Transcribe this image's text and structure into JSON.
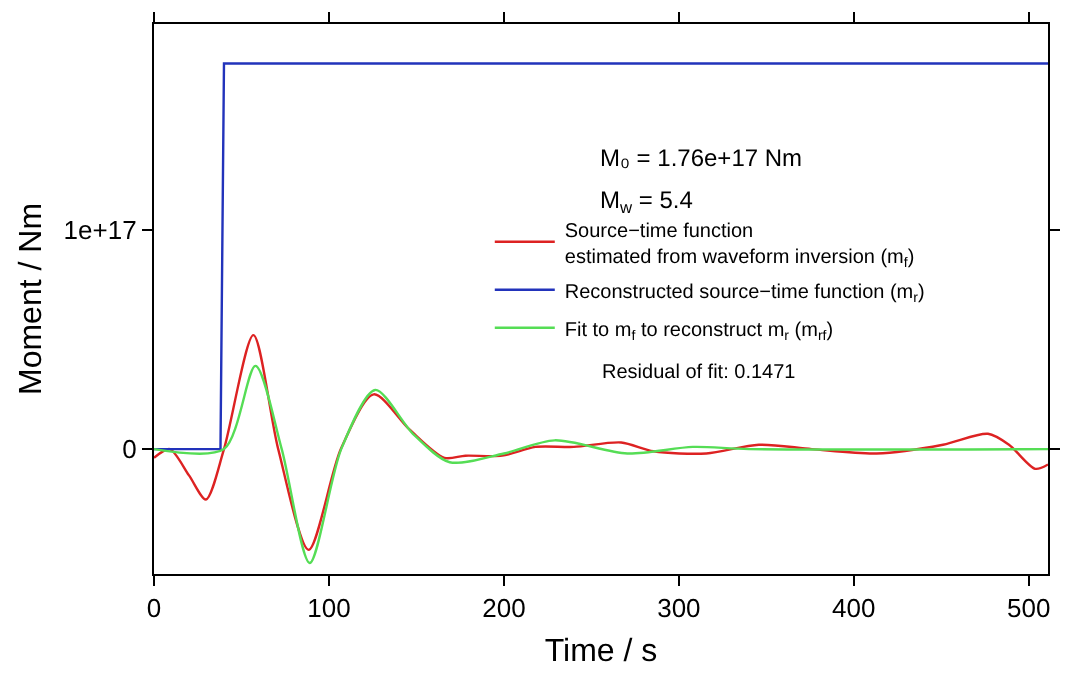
{
  "chart_data": {
    "type": "line",
    "xlabel": "Time / s",
    "ylabel": "Moment / Nm",
    "xlim": [
      0,
      511
    ],
    "ylim": [
      -5.7e+16,
      1.94e+17
    ],
    "xticks": [
      0,
      100,
      200,
      300,
      400,
      500
    ],
    "yticks": [
      0,
      {
        "value": 1e+17,
        "label": "1e+17"
      }
    ],
    "legend": "right",
    "line_style": "solid",
    "marker": "none",
    "series": [
      {
        "name": "Source−time function\nestimated from waveform inversion (m$_{f}$)",
        "color": "#dd2222",
        "x": [
          0,
          9,
          20,
          29.7,
          40,
          56.8,
          71,
          88.4,
          106.8,
          125.6,
          146,
          166,
          178,
          199,
          218,
          240,
          267,
          285.5,
          315.7,
          345.7,
          376,
          413,
          451,
          476.7,
          488.7,
          503.7,
          511
        ],
        "values": [
          -4000000000000000.0,
          0,
          -1.2e+16,
          -2.3e+16,
          0,
          5.2e+16,
          0,
          -4.6e+16,
          0,
          2.5e+16,
          9000000000000000.0,
          -4000000000000000.0,
          -3000000000000000.0,
          -3000000000000000.0,
          1000000000000000.0,
          1000000000000000.0,
          3000000000000000.0,
          -1000000000000000.0,
          -2000000000000000.0,
          2000000000000000.0,
          0,
          -2000000000000000.0,
          2000000000000000.0,
          7000000000000000.0,
          2000000000000000.0,
          -9000000000000000.0,
          -7000000000000000.0
        ]
      },
      {
        "name": "Reconstructed source−time function (m$_{r}$)",
        "color": "#2233bb",
        "x": [
          0,
          38,
          40,
          511
        ],
        "values": [
          0,
          0,
          1.76e+17,
          1.76e+17
        ]
      },
      {
        "name": "Fit to m$_{f}$ to reconstruct m$_{r}$ (m$_{rf}$)",
        "color": "#55dd55",
        "x": [
          0,
          40,
          58,
          73,
          89,
          107,
          126.4,
          148,
          169,
          200,
          229,
          270.5,
          308,
          340,
          511
        ],
        "values": [
          0,
          0,
          3.8e+16,
          0,
          -5.2e+16,
          0,
          2.7e+16,
          7000000000000000.0,
          -6000000000000000.0,
          -2000000000000000.0,
          4000000000000000.0,
          -2000000000000000.0,
          1000000000000000.0,
          0,
          0
        ]
      }
    ],
    "annotations": [
      "M₀ = 1.76e+17 Nm",
      "M$_{w}$ = 5.4",
      "Residual of fit: 0.1471"
    ]
  }
}
